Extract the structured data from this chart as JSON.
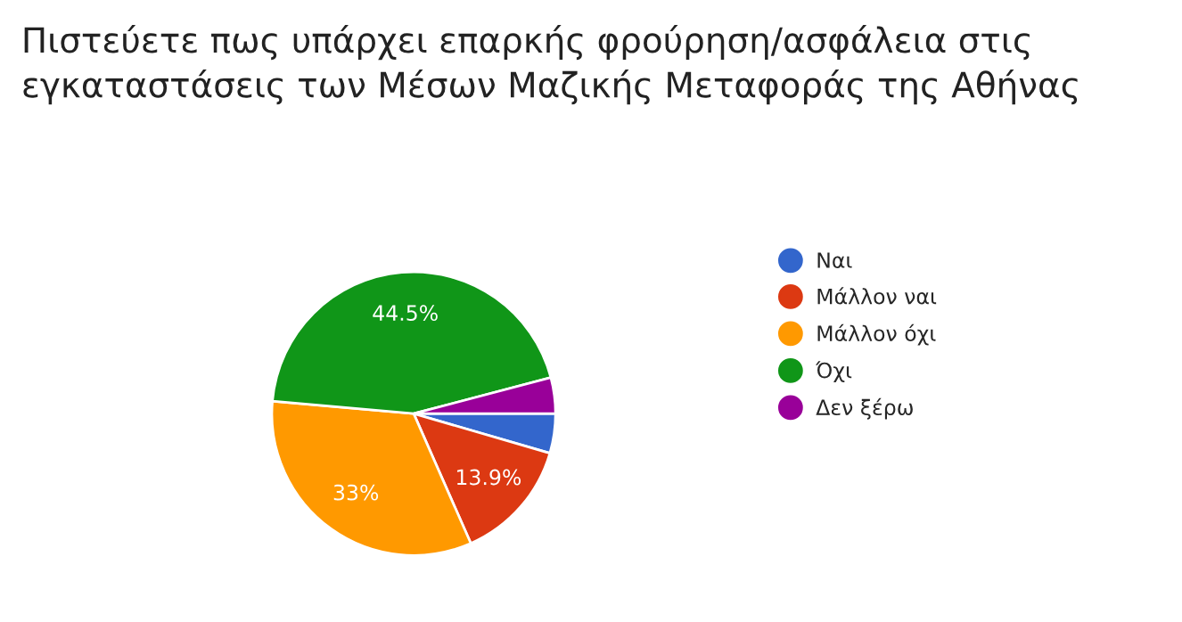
{
  "chart_data": {
    "type": "pie",
    "title": "Πιστεύετε πως υπάρχει επαρκής φρούρηση/ασφάλεια στις\nεγκαταστάσεις των Μέσων Μαζικής Μεταφοράς της Αθήνας",
    "categories": [
      "Ναι",
      "Μάλλον ναι",
      "Μάλλον όχι",
      "Όχι",
      "Δεν ξέρω"
    ],
    "values": [
      4.5,
      13.9,
      33,
      44.5,
      4.1
    ],
    "colors": [
      "#3366cc",
      "#dc3912",
      "#ff9900",
      "#109618",
      "#990099"
    ],
    "value_labels": [
      null,
      "13.9%",
      "33%",
      "44.5%",
      null
    ],
    "legend": "right"
  }
}
